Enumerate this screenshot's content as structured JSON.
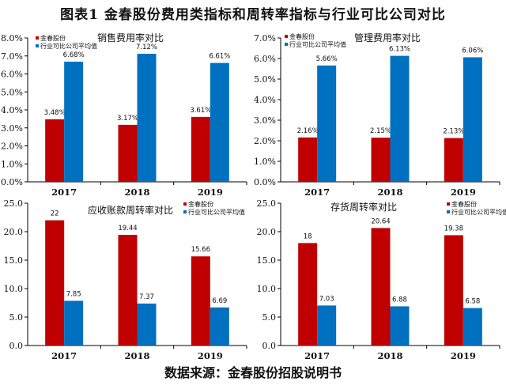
{
  "title": "图表1    金春股份费用类指标和周转率指标与行业可比公司对比",
  "source": "数据来源：金春股份招股说明书",
  "colors": {
    "company": "#C00000",
    "industry": "#0070C0"
  },
  "chart_data": [
    {
      "type": "bar",
      "title": "销售费用率对比",
      "categories": [
        "2017",
        "2018",
        "2019"
      ],
      "series": [
        {
          "name": "金春股份",
          "values": [
            3.48,
            3.17,
            3.61
          ],
          "labels": [
            "3.48%",
            "3.17%",
            "3.61%"
          ]
        },
        {
          "name": "行业可比公司平均值",
          "values": [
            6.68,
            7.12,
            6.61
          ],
          "labels": [
            "6.68%",
            "7.12%",
            "6.61%"
          ]
        }
      ],
      "ylim": [
        0,
        8
      ],
      "yticks": [
        "0.0%",
        "1.0%",
        "2.0%",
        "3.0%",
        "4.0%",
        "5.0%",
        "6.0%",
        "7.0%",
        "8.0%"
      ],
      "legend": "top-left",
      "grid": false
    },
    {
      "type": "bar",
      "title": "管理费用率对比",
      "categories": [
        "2017",
        "2018",
        "2019"
      ],
      "series": [
        {
          "name": "金春股份",
          "values": [
            2.16,
            2.15,
            2.13
          ],
          "labels": [
            "2.16%",
            "2.15%",
            "2.13%"
          ]
        },
        {
          "name": "行业可比公司平均值",
          "values": [
            5.66,
            6.13,
            6.06
          ],
          "labels": [
            "5.66%",
            "6.13%",
            "6.06%"
          ]
        }
      ],
      "ylim": [
        0,
        7
      ],
      "yticks": [
        "0.0%",
        "1.0%",
        "2.0%",
        "3.0%",
        "4.0%",
        "5.0%",
        "6.0%",
        "7.0%"
      ],
      "legend": "top-left",
      "grid": false
    },
    {
      "type": "bar",
      "title": "应收账款周转率对比",
      "categories": [
        "2017",
        "2018",
        "2019"
      ],
      "series": [
        {
          "name": "金春股份",
          "values": [
            22,
            19.44,
            15.66
          ],
          "labels": [
            "22",
            "19.44",
            "15.66"
          ]
        },
        {
          "name": "行业可比公司平均值",
          "values": [
            7.85,
            7.37,
            6.69
          ],
          "labels": [
            "7.85",
            "7.37",
            "6.69"
          ]
        }
      ],
      "ylim": [
        0,
        25
      ],
      "yticks": [
        "0.0",
        "5.0",
        "10.0",
        "15.0",
        "20.0",
        "25.0"
      ],
      "legend": "top-right",
      "grid": false
    },
    {
      "type": "bar",
      "title": "存货周转率对比",
      "categories": [
        "2017",
        "2018",
        "2019"
      ],
      "series": [
        {
          "name": "金春股份",
          "values": [
            18,
            20.64,
            19.38
          ],
          "labels": [
            "18",
            "20.64",
            "19.38"
          ]
        },
        {
          "name": "行业可比公司平均值",
          "values": [
            7.03,
            6.88,
            6.58
          ],
          "labels": [
            "7.03",
            "6.88",
            "6.58"
          ]
        }
      ],
      "ylim": [
        0,
        25
      ],
      "yticks": [
        "0.0",
        "5.0",
        "10.0",
        "15.0",
        "20.0",
        "25.0"
      ],
      "legend": "top-right",
      "grid": false
    }
  ]
}
